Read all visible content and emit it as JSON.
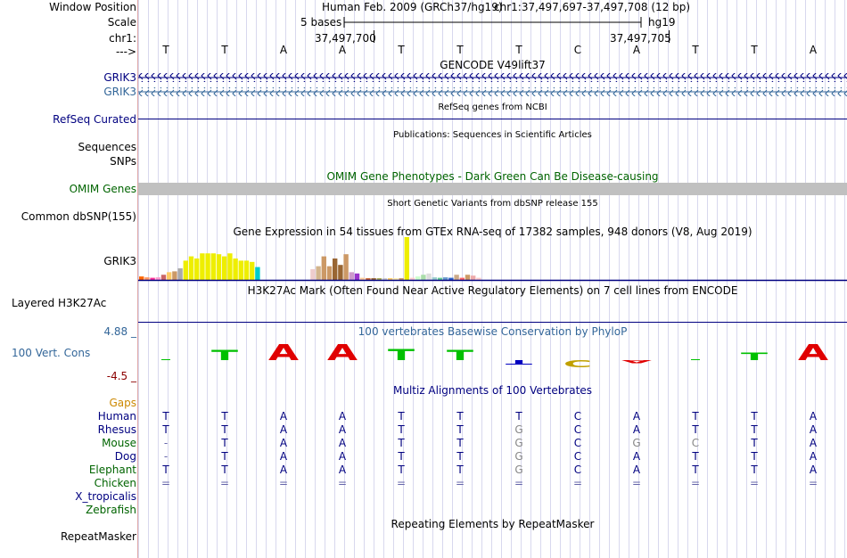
{
  "labels": {
    "window_position": "Window Position",
    "scale": "Scale",
    "chrom": "chr1:",
    "strand": "--->",
    "grik3_a": "GRIK3",
    "grik3_b": "GRIK3",
    "refseq": "RefSeq Curated",
    "sequences": "Sequences",
    "snps": "SNPs",
    "omim": "OMIM Genes",
    "dbsnp": "Common dbSNP(155)",
    "gtex_gene": "GRIK3",
    "h3k27ac": "Layered H3K27Ac",
    "phylop_max": "4.88 _",
    "phylop_track": "100 Vert. Cons",
    "phylop_min": "-4.5 _",
    "gaps": "Gaps",
    "repeatmasker": "RepeatMasker"
  },
  "header": {
    "assembly": "Human Feb. 2009 (GRCh37/hg19)",
    "position": "chr1:37,497,697-37,497,708 (12 bp)",
    "scale_text": "5 bases",
    "scale_db": "hg19",
    "pos_left": "37,497,700",
    "pos_right": "37,497,705"
  },
  "bases": [
    "T",
    "T",
    "A",
    "A",
    "T",
    "T",
    "T",
    "C",
    "A",
    "T",
    "T",
    "A"
  ],
  "track_titles": {
    "gencode": "GENCODE V49lift37",
    "refseq": "RefSeq genes from NCBI",
    "publications": "Publications: Sequences in Scientific Articles",
    "omim": "OMIM Gene Phenotypes - Dark Green Can Be Disease-causing",
    "dbsnp": "Short Genetic Variants from dbSNP release 155",
    "gtex": "Gene Expression in 54 tissues from GTEx RNA-seq of 17382 samples, 948 donors (V8, Aug 2019)",
    "h3k27ac": "H3K27Ac Mark (Often Found Near Active Regulatory Elements) on 7 cell lines from ENCODE",
    "phylop": "100 vertebrates Basewise Conservation by PhyloP",
    "multiz": "Multiz Alignments of 100 Vertebrates",
    "repeatmasker": "Repeating Elements by RepeatMasker"
  },
  "gtex_bars": [
    {
      "value": 0.08,
      "color": "#ff6600"
    },
    {
      "value": 0.06,
      "color": "#ff9966"
    },
    {
      "value": 0.05,
      "color": "#ff3399"
    },
    {
      "value": 0.06,
      "color": "#ff99cc"
    },
    {
      "value": 0.12,
      "color": "#cc6666"
    },
    {
      "value": 0.18,
      "color": "#ffcc66"
    },
    {
      "value": 0.2,
      "color": "#cc9966"
    },
    {
      "value": 0.27,
      "color": "#aaaaaa"
    },
    {
      "value": 0.45,
      "color": "#eeee00"
    },
    {
      "value": 0.55,
      "color": "#eeee00"
    },
    {
      "value": 0.5,
      "color": "#eeee00"
    },
    {
      "value": 0.62,
      "color": "#eeee00"
    },
    {
      "value": 0.62,
      "color": "#eeee00"
    },
    {
      "value": 0.62,
      "color": "#eeee00"
    },
    {
      "value": 0.6,
      "color": "#eeee00"
    },
    {
      "value": 0.55,
      "color": "#eeee00"
    },
    {
      "value": 0.62,
      "color": "#eeee00"
    },
    {
      "value": 0.5,
      "color": "#eeee00"
    },
    {
      "value": 0.45,
      "color": "#eeee00"
    },
    {
      "value": 0.45,
      "color": "#eeee00"
    },
    {
      "value": 0.42,
      "color": "#eeee00"
    },
    {
      "value": 0.3,
      "color": "#00cccc"
    },
    {
      "value": 0.0,
      "color": "#ffffff"
    },
    {
      "value": 0.0,
      "color": "#ffffff"
    },
    {
      "value": 0.0,
      "color": "#ffffff"
    },
    {
      "value": 0.0,
      "color": "#ffffff"
    },
    {
      "value": 0.0,
      "color": "#ffffff"
    },
    {
      "value": 0.0,
      "color": "#ffffff"
    },
    {
      "value": 0.0,
      "color": "#ffffff"
    },
    {
      "value": 0.0,
      "color": "#ffffff"
    },
    {
      "value": 0.0,
      "color": "#ffffff"
    },
    {
      "value": 0.25,
      "color": "#eecccc"
    },
    {
      "value": 0.32,
      "color": "#d2b48c"
    },
    {
      "value": 0.55,
      "color": "#cc9966"
    },
    {
      "value": 0.32,
      "color": "#cc9966"
    },
    {
      "value": 0.5,
      "color": "#996633"
    },
    {
      "value": 0.35,
      "color": "#996633"
    },
    {
      "value": 0.6,
      "color": "#cc9966"
    },
    {
      "value": 0.18,
      "color": "#cc99cc"
    },
    {
      "value": 0.15,
      "color": "#9933cc"
    },
    {
      "value": 0.05,
      "color": "#ffcc99"
    },
    {
      "value": 0.04,
      "color": "#cc6633"
    },
    {
      "value": 0.04,
      "color": "#996633"
    },
    {
      "value": 0.04,
      "color": "#aaaa55"
    },
    {
      "value": 0.04,
      "color": "#cccccc"
    },
    {
      "value": 0.04,
      "color": "#ffcc66"
    },
    {
      "value": 0.04,
      "color": "#ffeeaa"
    },
    {
      "value": 0.04,
      "color": "#cc9966"
    },
    {
      "value": 1.0,
      "color": "#eeee00"
    },
    {
      "value": 0.05,
      "color": "#ffcccc"
    },
    {
      "value": 0.08,
      "color": "#ccffcc"
    },
    {
      "value": 0.12,
      "color": "#aaddaa"
    },
    {
      "value": 0.15,
      "color": "#dddddd"
    },
    {
      "value": 0.06,
      "color": "#99cccc"
    },
    {
      "value": 0.05,
      "color": "#66cc99"
    },
    {
      "value": 0.06,
      "color": "#6699cc"
    },
    {
      "value": 0.05,
      "color": "#3366cc"
    },
    {
      "value": 0.12,
      "color": "#ccaa88"
    },
    {
      "value": 0.05,
      "color": "#ff6666"
    },
    {
      "value": 0.12,
      "color": "#cc9966"
    },
    {
      "value": 0.1,
      "color": "#eeaaaa"
    },
    {
      "value": 0.05,
      "color": "#ffcccc"
    }
  ],
  "phylop": {
    "max": 4.88,
    "min": -4.5,
    "scores": [
      0.15,
      1.4,
      2.2,
      2.2,
      1.5,
      1.4,
      -0.6,
      -0.9,
      -0.4,
      0.0,
      1.0,
      2.2
    ],
    "colors": [
      "#00c000",
      "#00c000",
      "#e00000",
      "#e00000",
      "#00c000",
      "#00c000",
      "#0000c0",
      "#c0a000",
      "#e00000",
      "#00c000",
      "#00c000",
      "#e00000"
    ]
  },
  "multiz": {
    "species": [
      {
        "name": "Human",
        "color": "#000080",
        "seq": [
          "T",
          "T",
          "A",
          "A",
          "T",
          "T",
          "T",
          "C",
          "A",
          "T",
          "T",
          "A"
        ]
      },
      {
        "name": "Rhesus",
        "color": "#000080",
        "seq": [
          "T",
          "T",
          "A",
          "A",
          "T",
          "T",
          "G",
          "C",
          "A",
          "T",
          "T",
          "A"
        ]
      },
      {
        "name": "Mouse",
        "color": "#006400",
        "seq": [
          "-",
          "T",
          "A",
          "A",
          "T",
          "T",
          "G",
          "C",
          "G",
          "C",
          "T",
          "A"
        ]
      },
      {
        "name": "Dog",
        "color": "#000080",
        "seq": [
          "-",
          "T",
          "A",
          "A",
          "T",
          "T",
          "G",
          "C",
          "A",
          "T",
          "T",
          "A"
        ]
      },
      {
        "name": "Elephant",
        "color": "#006400",
        "seq": [
          "T",
          "T",
          "A",
          "A",
          "T",
          "T",
          "G",
          "C",
          "A",
          "T",
          "T",
          "A"
        ]
      },
      {
        "name": "Chicken",
        "color": "#006400",
        "seq": [
          "=",
          "=",
          "=",
          "=",
          "=",
          "=",
          "=",
          "=",
          "=",
          "=",
          "=",
          "="
        ]
      },
      {
        "name": "X_tropicalis",
        "color": "#000080",
        "seq": [
          "",
          "",
          "",
          "",
          "",
          "",
          "",
          "",
          "",
          "",
          "",
          ""
        ]
      },
      {
        "name": "Zebrafish",
        "color": "#006400",
        "seq": [
          "",
          "",
          "",
          "",
          "",
          "",
          "",
          "",
          "",
          "",
          "",
          ""
        ]
      }
    ],
    "mismatch_color": "#888888"
  },
  "colors": {
    "navy": "#000080",
    "teal": "#336699",
    "omim_green": "#006400",
    "omim_bar": "#c0c0c0",
    "gaps": "#cc8800",
    "phylop_min": "#8b0000",
    "phylop_track": "#336699",
    "grid": "#d8d8ee"
  }
}
